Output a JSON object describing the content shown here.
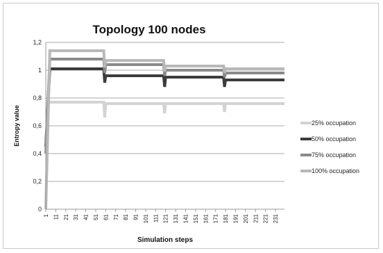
{
  "chart_data": {
    "type": "line",
    "title": "Topology 100 nodes",
    "xlabel": "Simulation steps",
    "ylabel": "Entropy value",
    "ylim": [
      0,
      1.2
    ],
    "xlim": [
      1,
      240
    ],
    "grid": true,
    "legend_position": "right",
    "y_ticks": [
      "0",
      "0,2",
      "0,4",
      "0,6",
      "0,8",
      "1",
      "1,2"
    ],
    "y_tick_values": [
      0,
      0.2,
      0.4,
      0.6,
      0.8,
      1.0,
      1.2
    ],
    "x_ticks": [
      "1",
      "11",
      "21",
      "31",
      "41",
      "51",
      "61",
      "71",
      "81",
      "91",
      "101",
      "111",
      "121",
      "131",
      "141",
      "151",
      "161",
      "171",
      "181",
      "191",
      "201",
      "211",
      "221",
      "231"
    ],
    "x_tick_values": [
      1,
      11,
      21,
      31,
      41,
      51,
      61,
      71,
      81,
      91,
      101,
      111,
      121,
      131,
      141,
      151,
      161,
      171,
      181,
      191,
      201,
      211,
      221,
      231
    ],
    "series": [
      {
        "name": "25% occupation",
        "color": "#d3d3d3",
        "points": [
          [
            1,
            0.5
          ],
          [
            4,
            0.77
          ],
          [
            59,
            0.77
          ],
          [
            60,
            0.66
          ],
          [
            61,
            0.76
          ],
          [
            119,
            0.76
          ],
          [
            120,
            0.69
          ],
          [
            121,
            0.76
          ],
          [
            179,
            0.76
          ],
          [
            180,
            0.7
          ],
          [
            181,
            0.76
          ],
          [
            240,
            0.76
          ]
        ]
      },
      {
        "name": "50% occupation",
        "color": "#3c3c3c",
        "points": [
          [
            1,
            0.45
          ],
          [
            5,
            1.01
          ],
          [
            59,
            1.01
          ],
          [
            60,
            0.91
          ],
          [
            61,
            0.96
          ],
          [
            119,
            0.96
          ],
          [
            120,
            0.88
          ],
          [
            121,
            0.95
          ],
          [
            179,
            0.95
          ],
          [
            180,
            0.88
          ],
          [
            181,
            0.93
          ],
          [
            240,
            0.93
          ]
        ]
      },
      {
        "name": "75% occupation",
        "color": "#8a8a8a",
        "points": [
          [
            1,
            0.4
          ],
          [
            5,
            1.08
          ],
          [
            59,
            1.08
          ],
          [
            60,
            0.98
          ],
          [
            61,
            1.04
          ],
          [
            119,
            1.04
          ],
          [
            120,
            0.96
          ],
          [
            121,
            1.0
          ],
          [
            179,
            1.0
          ],
          [
            180,
            0.95
          ],
          [
            181,
            0.98
          ],
          [
            240,
            0.98
          ]
        ]
      },
      {
        "name": "100% occupation",
        "color": "#b8b8b8",
        "points": [
          [
            1,
            0.0
          ],
          [
            5,
            1.14
          ],
          [
            59,
            1.14
          ],
          [
            60,
            1.02
          ],
          [
            61,
            1.07
          ],
          [
            119,
            1.07
          ],
          [
            120,
            0.99
          ],
          [
            121,
            1.03
          ],
          [
            179,
            1.03
          ],
          [
            180,
            0.98
          ],
          [
            181,
            1.01
          ],
          [
            240,
            1.01
          ]
        ]
      }
    ]
  }
}
